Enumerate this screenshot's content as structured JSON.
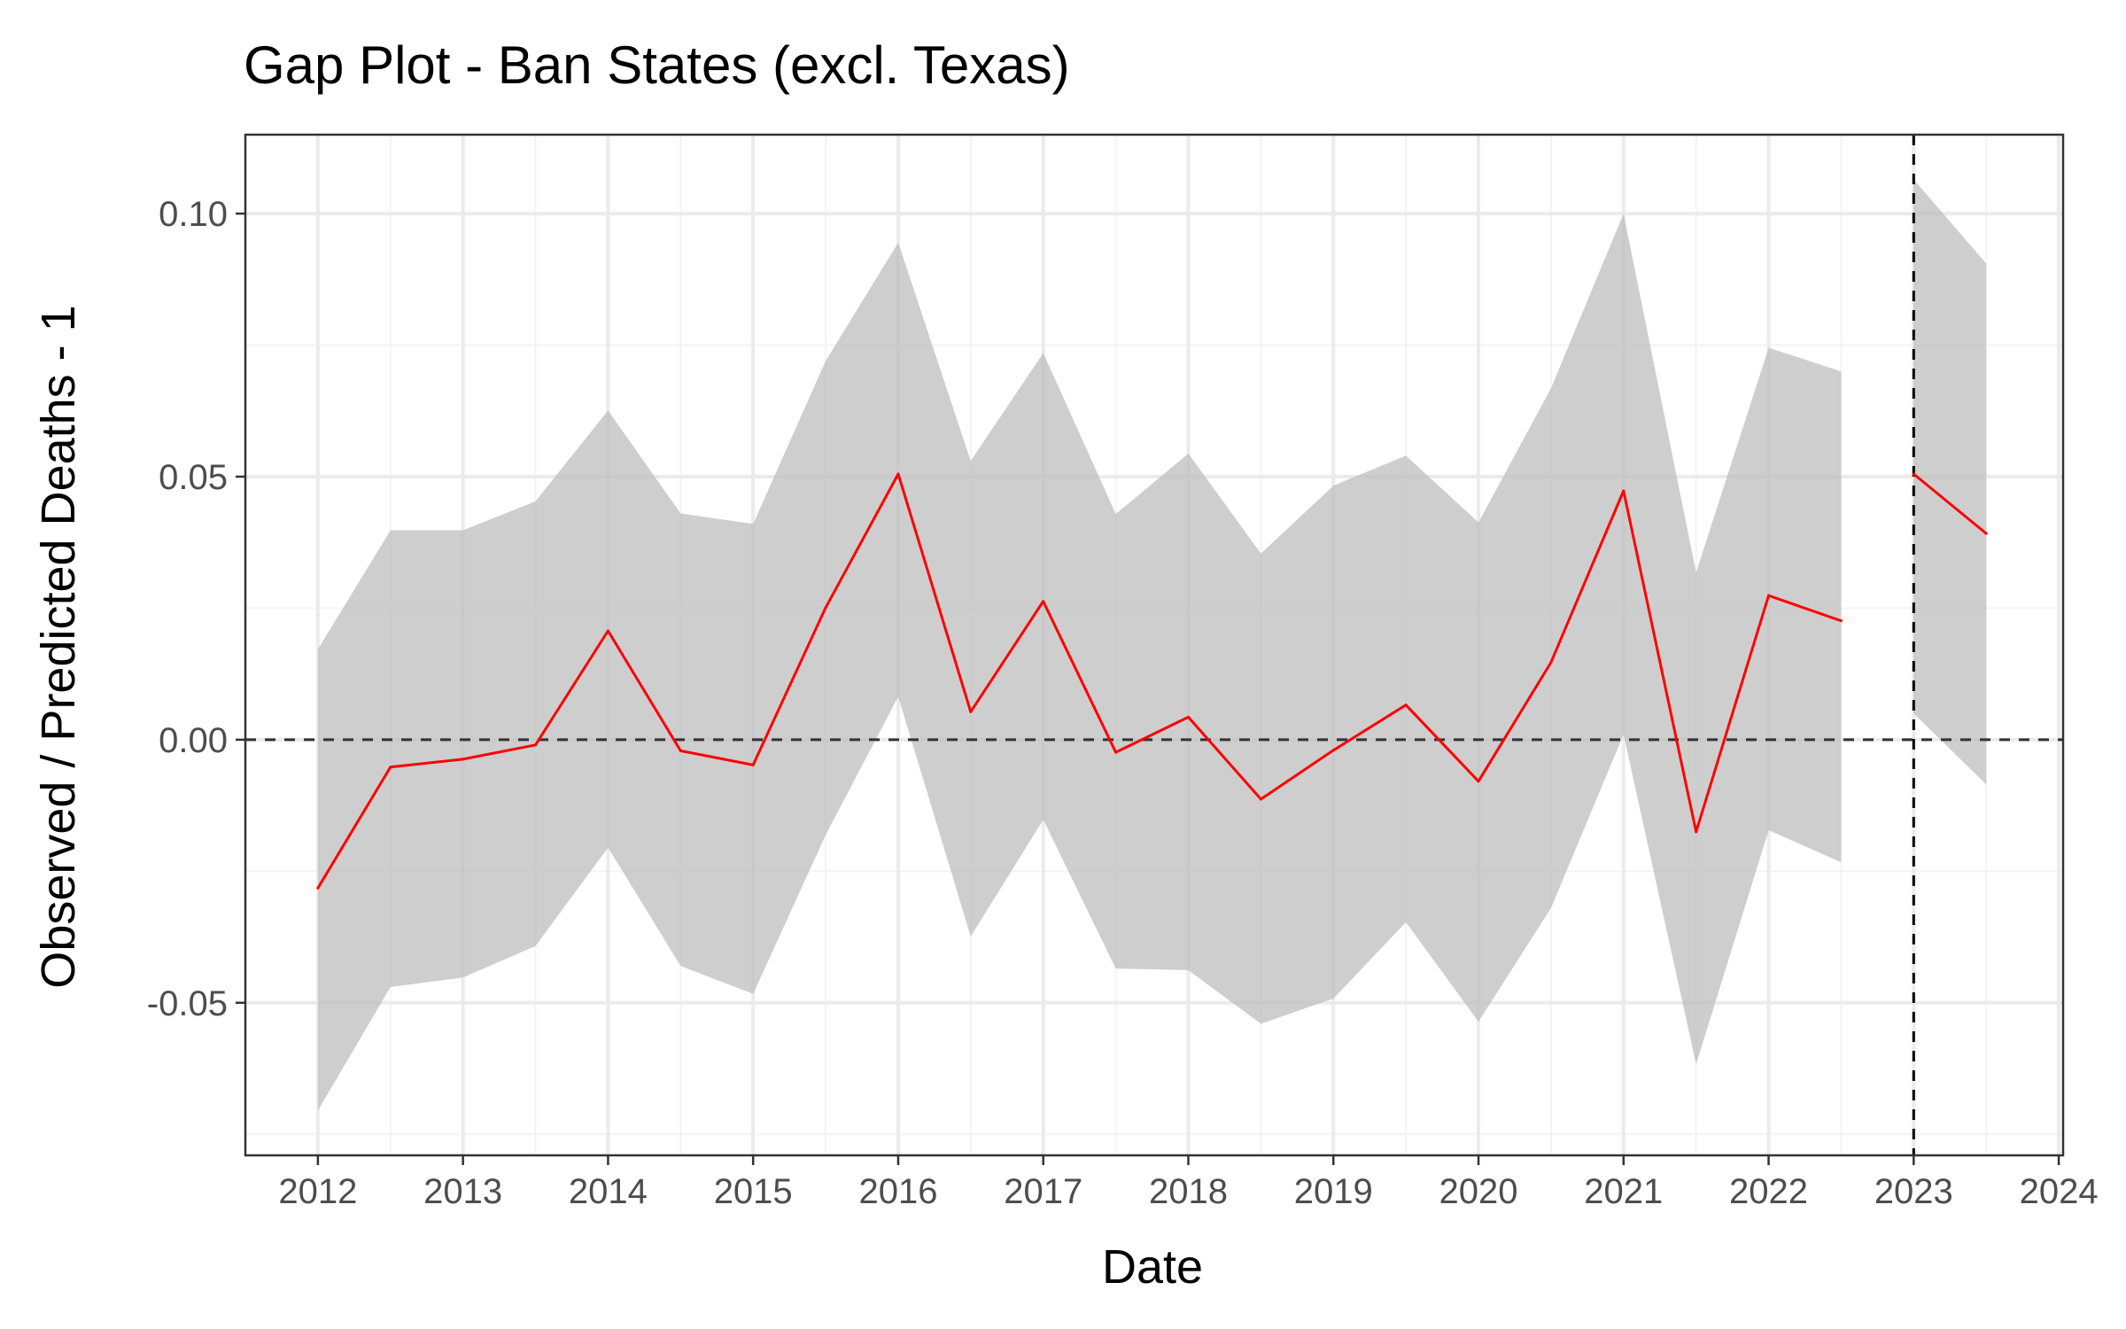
{
  "chart_data": {
    "type": "line",
    "title": "Gap Plot - Ban States (excl. Texas)",
    "xlabel": "Date",
    "ylabel": "Observed / Predicted Deaths - 1",
    "xlim": [
      2011.5,
      2024.03
    ],
    "ylim": [
      -0.079,
      0.115
    ],
    "x_ticks": [
      2012,
      2013,
      2014,
      2015,
      2016,
      2017,
      2018,
      2019,
      2020,
      2021,
      2022,
      2023,
      2024
    ],
    "x_tick_labels": [
      "2012",
      "2013",
      "2014",
      "2015",
      "2016",
      "2017",
      "2018",
      "2019",
      "2020",
      "2021",
      "2022",
      "2023",
      "2024"
    ],
    "y_ticks": [
      -0.05,
      0.0,
      0.05,
      0.1
    ],
    "y_tick_labels": [
      "-0.05",
      "0.00",
      "0.05",
      "0.10"
    ],
    "grid": true,
    "reference_lines": {
      "horizontal_y": 0.0,
      "vertical_x": 2023
    },
    "colors": {
      "line": "#ff0000",
      "ribbon": "#bebebe",
      "grid_major": "#ebebeb",
      "grid_minor": "#f3f3f3",
      "reference": "#333333"
    },
    "segments": [
      {
        "x": [
          2012.0,
          2012.5,
          2013.0,
          2013.5,
          2014.0,
          2014.5,
          2015.0,
          2015.5,
          2016.0,
          2016.5,
          2017.0,
          2017.5,
          2018.0,
          2018.5,
          2019.0,
          2019.5,
          2020.0,
          2020.5,
          2021.0,
          2021.5,
          2022.0,
          2022.5
        ],
        "y": [
          -0.0282,
          -0.0052,
          -0.0037,
          -0.001,
          0.0207,
          -0.0021,
          -0.0048,
          0.0251,
          0.0505,
          0.0053,
          0.0263,
          -0.0024,
          0.0043,
          -0.0113,
          -0.002,
          0.0066,
          -0.0079,
          0.0147,
          0.0473,
          -0.0175,
          0.0274,
          0.0226
        ],
        "lower": [
          -0.0705,
          -0.047,
          -0.0452,
          -0.0392,
          -0.0205,
          -0.043,
          -0.0483,
          -0.0181,
          0.0082,
          -0.0374,
          -0.0152,
          -0.0435,
          -0.0438,
          -0.054,
          -0.0492,
          -0.0347,
          -0.0536,
          -0.032,
          0.001,
          -0.0617,
          -0.0172,
          -0.0233
        ],
        "upper": [
          0.0172,
          0.0398,
          0.0398,
          0.0453,
          0.0626,
          0.043,
          0.041,
          0.072,
          0.0945,
          0.053,
          0.0735,
          0.0429,
          0.0544,
          0.0354,
          0.0483,
          0.054,
          0.0413,
          0.0668,
          0.1,
          0.0318,
          0.0745,
          0.07
        ]
      },
      {
        "x": [
          2023.0,
          2023.5
        ],
        "y": [
          0.0505,
          0.0392
        ],
        "lower": [
          0.005,
          -0.0085
        ],
        "upper": [
          0.1065,
          0.0905
        ]
      }
    ]
  }
}
